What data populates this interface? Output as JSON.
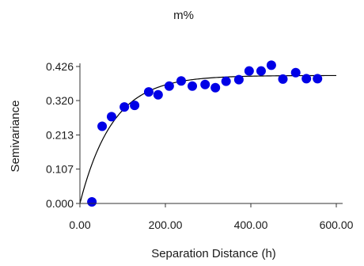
{
  "chart_data": {
    "type": "scatter",
    "title": "m%",
    "xlabel": "Separation Distance (h)",
    "ylabel": "Semivariance",
    "xlim": [
      0,
      600
    ],
    "ylim": [
      0,
      0.426
    ],
    "xticks": [
      0,
      200,
      400,
      600
    ],
    "xtick_labels": [
      "0.00",
      "200.00",
      "400.00",
      "600.00"
    ],
    "yticks": [
      0,
      0.107,
      0.213,
      0.32,
      0.426
    ],
    "ytick_labels": [
      "0.000",
      "0.107",
      "0.213",
      "0.320",
      "0.426"
    ],
    "grid": false,
    "legend": "none",
    "marker_color": "#0000e6",
    "series": [
      {
        "x": [
          28,
          52,
          74,
          104,
          128,
          161,
          183,
          209,
          237,
          263,
          293,
          317,
          342,
          372,
          396,
          424,
          448,
          475,
          505,
          530,
          556
        ],
        "y": [
          0.005,
          0.24,
          0.27,
          0.3,
          0.305,
          0.347,
          0.338,
          0.365,
          0.381,
          0.365,
          0.37,
          0.36,
          0.38,
          0.385,
          0.412,
          0.412,
          0.43,
          0.387,
          0.407,
          0.388,
          0.388
        ]
      }
    ],
    "model": {
      "type": "exponential",
      "nugget": 0.0,
      "sill": 0.398,
      "range": 230,
      "line_color": "#000000"
    }
  }
}
